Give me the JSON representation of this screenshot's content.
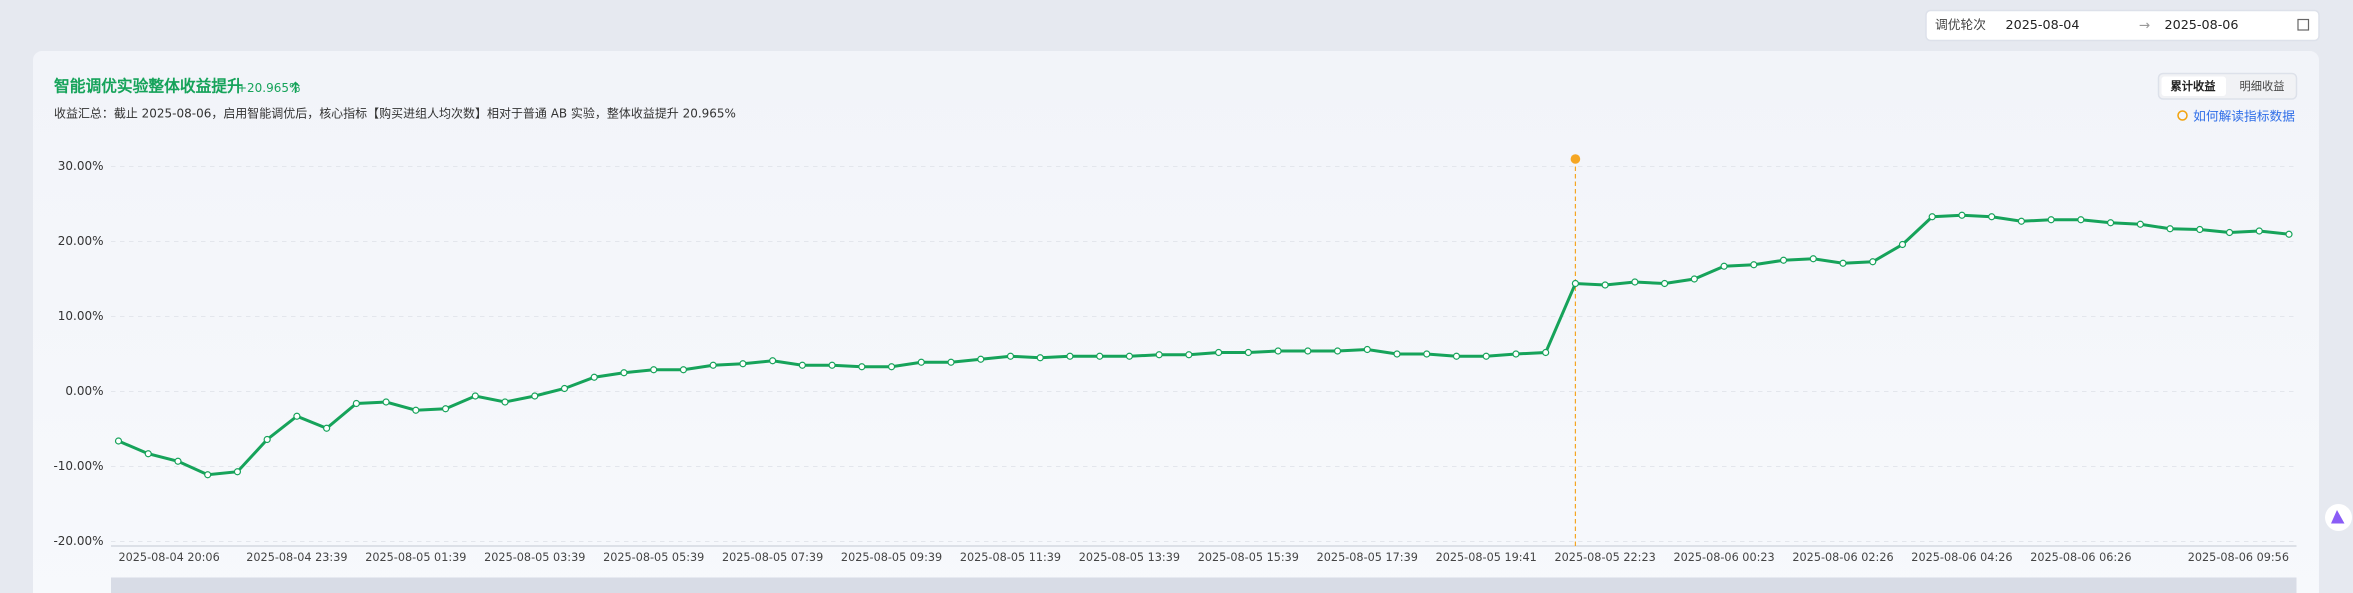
{
  "header": {
    "round_label": "调优轮次",
    "start_date": "2025-08-04",
    "arrow": "→",
    "end_date": "2025-08-06"
  },
  "panel": {
    "title": "智能调优实验整体收益提升",
    "badge": "+20.965%",
    "summary": "收益汇总：截止 2025-08-06，启用智能调优后，核心指标【购买进组人均次数】相对于普通 AB 实验，整体收益提升 20.965%",
    "tab_cumulative": "累计收益",
    "tab_detail": "明细收益",
    "help_link": "如何解读指标数据"
  },
  "chart_data": {
    "type": "line",
    "highlight": 49,
    "categories": [
      "2025-08-04 20:06",
      null,
      null,
      null,
      null,
      null,
      "2025-08-04 23:39",
      null,
      null,
      null,
      "2025-08-05 01:39",
      null,
      null,
      null,
      "2025-08-05 03:39",
      null,
      null,
      null,
      "2025-08-05 05:39",
      null,
      null,
      null,
      "2025-08-05 07:39",
      null,
      null,
      null,
      "2025-08-05 09:39",
      null,
      null,
      null,
      "2025-08-05 11:39",
      null,
      null,
      null,
      "2025-08-05 13:39",
      null,
      null,
      null,
      "2025-08-05 15:39",
      null,
      null,
      null,
      "2025-08-05 17:39",
      null,
      null,
      null,
      "2025-08-05 19:41",
      null,
      null,
      null,
      "2025-08-05 22:23",
      null,
      null,
      null,
      "2025-08-06 00:23",
      null,
      null,
      null,
      "2025-08-06 02:26",
      null,
      null,
      null,
      "2025-08-06 04:26",
      null,
      null,
      null,
      "2025-08-06 06:26",
      null,
      null,
      null,
      null,
      null,
      null,
      "2025-08-06 09:56"
    ],
    "series": [
      {
        "name": "整体收益",
        "color": "#16a35a",
        "values": [
          -6.6,
          -8.3,
          -9.3,
          -11.1,
          -10.7,
          -6.4,
          -3.3,
          -4.9,
          -1.6,
          -1.4,
          -2.5,
          -2.3,
          -0.6,
          -1.4,
          -0.6,
          0.4,
          1.9,
          2.5,
          2.9,
          2.9,
          3.5,
          3.7,
          4.1,
          3.5,
          3.5,
          3.3,
          3.3,
          3.9,
          3.9,
          4.3,
          4.7,
          4.5,
          4.7,
          4.7,
          4.7,
          4.9,
          4.9,
          5.2,
          5.2,
          5.4,
          5.4,
          5.4,
          5.6,
          5.0,
          5.0,
          4.7,
          4.7,
          5.0,
          5.2,
          14.4,
          14.2,
          14.6,
          14.4,
          15.0,
          16.7,
          16.9,
          17.5,
          17.7,
          17.1,
          17.3,
          19.6,
          23.3,
          23.5,
          23.3,
          22.7,
          22.9,
          22.9,
          22.5,
          22.3,
          21.7,
          21.6,
          21.2,
          21.4,
          20.965
        ]
      }
    ],
    "ylim": [
      -20,
      30
    ],
    "yticks": [
      {
        "value": -20,
        "label": "-20.00%"
      },
      {
        "value": -10,
        "label": "-10.00%"
      },
      {
        "value": 0,
        "label": "0.00%"
      },
      {
        "value": 10,
        "label": "10.00%"
      },
      {
        "value": 20,
        "label": "20.00%"
      },
      {
        "value": 30,
        "label": "30.00%"
      }
    ],
    "grid": true
  }
}
